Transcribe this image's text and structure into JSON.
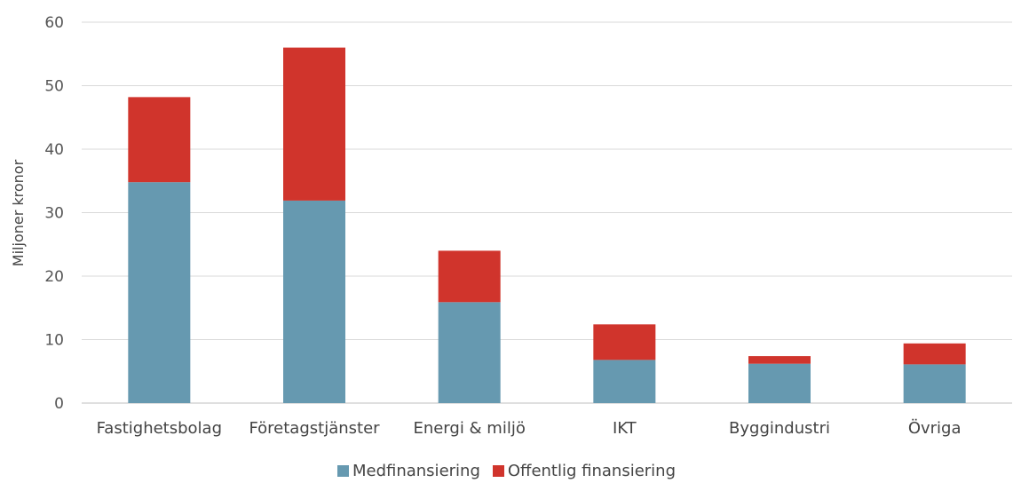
{
  "chart_data": {
    "type": "bar",
    "stacked": true,
    "title": "",
    "xlabel": "",
    "ylabel": "Miljoner kronor",
    "ylim": [
      0,
      60
    ],
    "yticks": [
      0,
      10,
      20,
      30,
      40,
      50,
      60
    ],
    "grid": true,
    "legend_position": "bottom",
    "categories": [
      "Fastighetsbolag",
      "Företagstjänster",
      "Energi & miljö",
      "IKT",
      "Byggindustri",
      "Övriga"
    ],
    "series": [
      {
        "name": "Medfinansiering",
        "color": "#6699b0",
        "values": [
          34.8,
          31.9,
          15.9,
          6.8,
          6.2,
          6.1
        ]
      },
      {
        "name": "Offentlig finansiering",
        "color": "#d0342c",
        "values": [
          13.4,
          24.1,
          8.1,
          5.6,
          1.2,
          3.3
        ]
      }
    ]
  }
}
